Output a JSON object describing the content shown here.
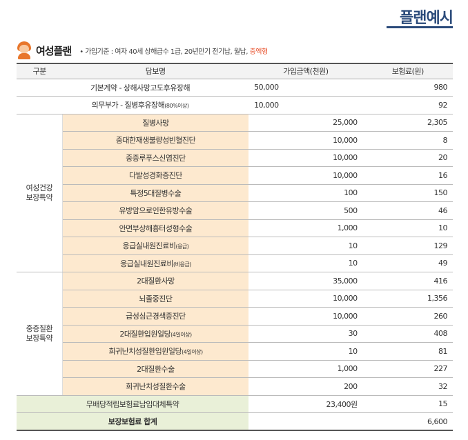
{
  "page_title": "플랜예시",
  "plan": {
    "name": "여성플랜",
    "criteria_prefix": "• 가입기준 : 여자 40세 상해급수 1급, 20년만기 전기납, 월납, ",
    "criteria_accent": "중액형"
  },
  "table": {
    "headers": [
      "구분",
      "담보명",
      "가입금액(천원)",
      "보험료(원)"
    ],
    "basic_rows": [
      {
        "name": "기본계약 - 상해사망고도후유장해",
        "note": "",
        "amount": "50,000",
        "premium": "980"
      },
      {
        "name": "의무부가 - 질병후유장해",
        "note": "(80%이상)",
        "amount": "10,000",
        "premium": "92"
      }
    ],
    "group1": {
      "label_line1": "여성건강",
      "label_line2": "보장특약",
      "rows": [
        {
          "name": "질병사망",
          "note": "",
          "amount": "25,000",
          "premium": "2,305"
        },
        {
          "name": "중대한재생불량성빈혈진단",
          "note": "",
          "amount": "10,000",
          "premium": "8"
        },
        {
          "name": "중증루푸스신염진단",
          "note": "",
          "amount": "10,000",
          "premium": "20"
        },
        {
          "name": "다발성경화증진단",
          "note": "",
          "amount": "10,000",
          "premium": "16"
        },
        {
          "name": "특정5대질병수술",
          "note": "",
          "amount": "100",
          "premium": "150"
        },
        {
          "name": "유방암으로인한유방수술",
          "note": "",
          "amount": "500",
          "premium": "46"
        },
        {
          "name": "안면부상해흉터성형수술",
          "note": "",
          "amount": "1,000",
          "premium": "10"
        },
        {
          "name": "응급실내원진료비",
          "note": "(응급)",
          "amount": "10",
          "premium": "129"
        },
        {
          "name": "응급실내원진료비",
          "note": "(비응급)",
          "amount": "10",
          "premium": "49"
        }
      ]
    },
    "group2": {
      "label_line1": "중증질환",
      "label_line2": "보장특약",
      "rows": [
        {
          "name": "2대질환사망",
          "note": "",
          "amount": "35,000",
          "premium": "416"
        },
        {
          "name": "뇌졸중진단",
          "note": "",
          "amount": "10,000",
          "premium": "1,356"
        },
        {
          "name": "급성심근경색증진단",
          "note": "",
          "amount": "10,000",
          "premium": "260"
        },
        {
          "name": "2대질환입원일당",
          "note": "(4일이상)",
          "amount": "30",
          "premium": "408"
        },
        {
          "name": "희귀난치성질환입원일당",
          "note": "(4일이상)",
          "amount": "10",
          "premium": "81"
        },
        {
          "name": "2대질환수술",
          "note": "",
          "amount": "1,000",
          "premium": "227"
        },
        {
          "name": "희귀난치성질환수술",
          "note": "",
          "amount": "200",
          "premium": "32"
        }
      ]
    },
    "waiver_row": {
      "name": "무배당적립보험료납입대체특약",
      "amount": "23,400원",
      "premium": "15"
    },
    "total_row": {
      "label": "보장보험료 합계",
      "premium": "6,600"
    }
  },
  "colors": {
    "title": "#2a4a7a",
    "accent": "#e8502b",
    "peach": "#fde9cf",
    "green": "#e9f0d8"
  }
}
